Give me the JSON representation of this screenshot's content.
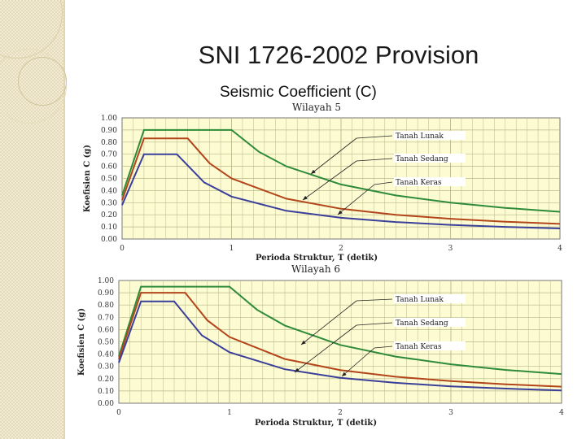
{
  "slide": {
    "title": "SNI 1726-2002 Provision",
    "subtitle": "Seismic Coefficient (C)"
  },
  "colors": {
    "plot_bg": "#fdfbd2",
    "grid": "#b9b98a",
    "tanah_lunak": "#2e8b3a",
    "tanah_sedang": "#b3451b",
    "tanah_keras": "#3a3f9a"
  },
  "chart_data": [
    {
      "type": "line",
      "title": "Wilayah 5",
      "xlabel": "Perioda Struktur, T  (detik)",
      "ylabel": "Koefisien C (g)",
      "xlim": [
        0,
        4
      ],
      "ylim": [
        0,
        1.0
      ],
      "xticks": [
        "0",
        "1",
        "2",
        "3",
        "4"
      ],
      "yticks": [
        "0.00",
        "0.10",
        "0.20",
        "0.30",
        "0.40",
        "0.50",
        "0.60",
        "0.70",
        "0.80",
        "0.90",
        "1.00"
      ],
      "grid": true,
      "series": [
        {
          "name": "Tanah Lunak",
          "x": [
            0,
            0.2,
            1.0,
            1.25,
            1.5,
            2.0,
            2.5,
            3.0,
            3.5,
            4.0
          ],
          "values": [
            0.36,
            0.9,
            0.9,
            0.72,
            0.6,
            0.45,
            0.36,
            0.3,
            0.257,
            0.225
          ]
        },
        {
          "name": "Tanah Sedang",
          "x": [
            0,
            0.2,
            0.6,
            0.8,
            1.0,
            1.5,
            2.0,
            2.5,
            3.0,
            3.5,
            4.0
          ],
          "values": [
            0.32,
            0.83,
            0.83,
            0.625,
            0.5,
            0.333,
            0.25,
            0.2,
            0.167,
            0.143,
            0.125
          ]
        },
        {
          "name": "Tanah Keras",
          "x": [
            0,
            0.2,
            0.5,
            0.75,
            1.0,
            1.5,
            2.0,
            2.5,
            3.0,
            3.5,
            4.0
          ],
          "values": [
            0.28,
            0.7,
            0.7,
            0.467,
            0.35,
            0.233,
            0.175,
            0.14,
            0.117,
            0.1,
            0.0875
          ]
        }
      ],
      "annotations": [
        "Tanah Lunak",
        "Tanah Sedang",
        "Tanah Keras"
      ]
    },
    {
      "type": "line",
      "title": "Wilayah 6",
      "xlabel": "Perioda Struktur, T  (detik)",
      "ylabel": "Koefisien C (g)",
      "xlim": [
        0,
        4
      ],
      "ylim": [
        0,
        1.0
      ],
      "xticks": [
        "0",
        "1",
        "2",
        "3",
        "4"
      ],
      "yticks": [
        "0.00",
        "0.10",
        "0.20",
        "0.30",
        "0.40",
        "0.50",
        "0.60",
        "0.70",
        "0.80",
        "0.90",
        "1.00"
      ],
      "grid": true,
      "series": [
        {
          "name": "Tanah Lunak",
          "x": [
            0,
            0.2,
            1.0,
            1.25,
            1.5,
            2.0,
            2.5,
            3.0,
            3.5,
            4.0
          ],
          "values": [
            0.38,
            0.95,
            0.95,
            0.76,
            0.633,
            0.475,
            0.38,
            0.317,
            0.271,
            0.2375
          ]
        },
        {
          "name": "Tanah Sedang",
          "x": [
            0,
            0.2,
            0.6,
            0.8,
            1.0,
            1.5,
            2.0,
            2.5,
            3.0,
            3.5,
            4.0
          ],
          "values": [
            0.36,
            0.9,
            0.9,
            0.675,
            0.54,
            0.36,
            0.27,
            0.216,
            0.18,
            0.154,
            0.135
          ]
        },
        {
          "name": "Tanah Keras",
          "x": [
            0,
            0.2,
            0.5,
            0.75,
            1.0,
            1.5,
            2.0,
            2.5,
            3.0,
            3.5,
            4.0
          ],
          "values": [
            0.33,
            0.83,
            0.83,
            0.553,
            0.415,
            0.277,
            0.2075,
            0.166,
            0.138,
            0.119,
            0.104
          ]
        }
      ],
      "annotations": [
        "Tanah Lunak",
        "Tanah Sedang",
        "Tanah Keras"
      ]
    }
  ]
}
